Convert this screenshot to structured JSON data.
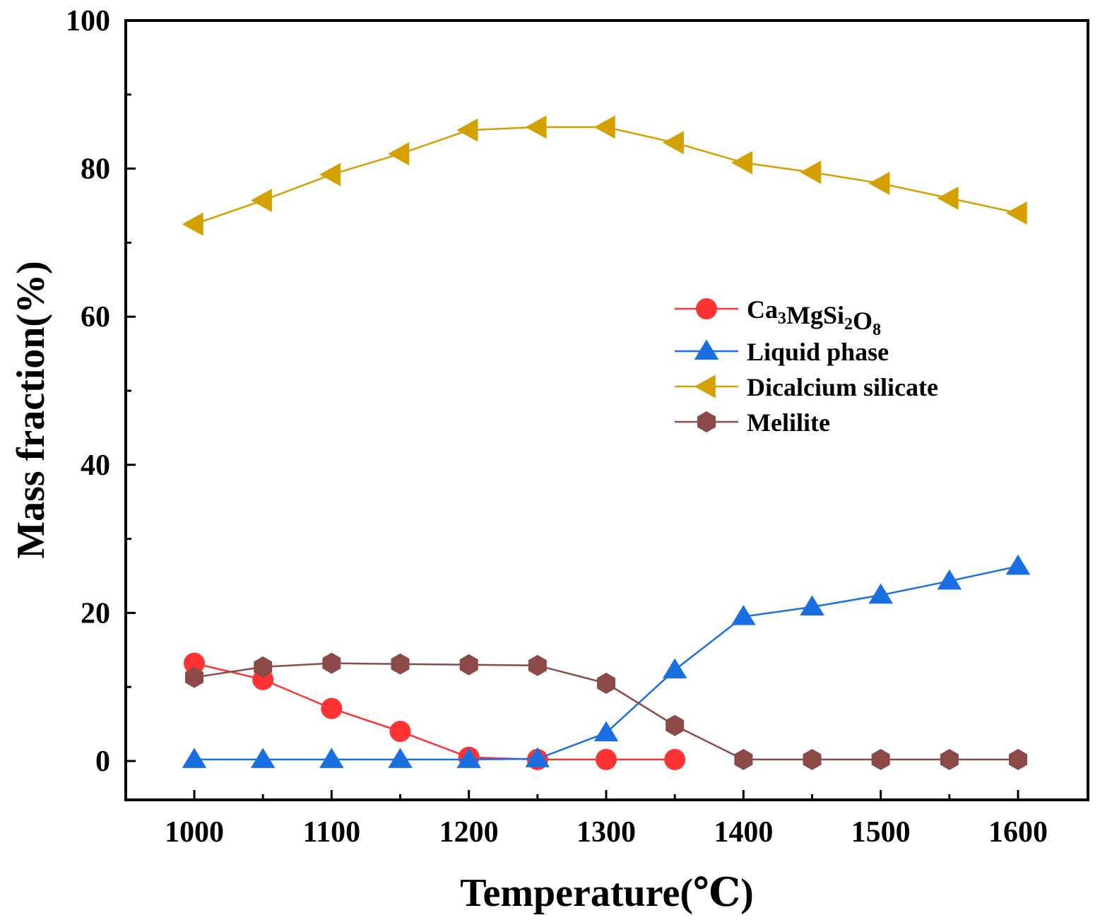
{
  "chart_data": {
    "type": "line",
    "title": "",
    "xlabel": "Temperature(℃)",
    "ylabel": "Mass fraction(%)",
    "xlim": [
      950,
      1650
    ],
    "ylim": [
      -5,
      100
    ],
    "x_ticks": [
      1000,
      1100,
      1200,
      1300,
      1400,
      1500,
      1600
    ],
    "y_ticks": [
      0,
      20,
      40,
      60,
      80,
      100
    ],
    "legend_position": "center-right",
    "x": [
      1000,
      1050,
      1100,
      1150,
      1200,
      1250,
      1300,
      1350,
      1400,
      1450,
      1500,
      1550,
      1600
    ],
    "series": [
      {
        "name": "Ca3MgSi2O8",
        "label_main": "Ca",
        "label_parts": [
          {
            "t": "Ca",
            "sub": false
          },
          {
            "t": "3",
            "sub": true
          },
          {
            "t": "MgSi",
            "sub": false
          },
          {
            "t": "2",
            "sub": true
          },
          {
            "t": "O",
            "sub": false
          },
          {
            "t": "8",
            "sub": true
          }
        ],
        "color": "#ff3333",
        "marker": "circle",
        "values": [
          13.2,
          11.0,
          7.1,
          4.0,
          0.5,
          0.2,
          0.2,
          0.2,
          null,
          null,
          null,
          null,
          null
        ]
      },
      {
        "name": "Liquid phase",
        "color": "#1a6fe0",
        "marker": "triangle-up",
        "values": [
          0.2,
          0.2,
          0.2,
          0.2,
          0.2,
          0.3,
          3.8,
          12.3,
          19.5,
          20.8,
          22.4,
          24.3,
          26.3
        ]
      },
      {
        "name": "Dicalcium silicate",
        "color": "#d4a000",
        "marker": "triangle-left",
        "values": [
          72.5,
          75.7,
          79.2,
          82.0,
          85.2,
          85.6,
          85.6,
          83.5,
          80.8,
          79.5,
          78.0,
          76.0,
          74.0
        ]
      },
      {
        "name": "Melilite",
        "color": "#8b4a47",
        "marker": "hexagon",
        "values": [
          11.3,
          12.7,
          13.2,
          13.1,
          13.0,
          12.9,
          10.5,
          4.8,
          0.2,
          0.2,
          0.2,
          0.2,
          0.2
        ]
      }
    ]
  }
}
